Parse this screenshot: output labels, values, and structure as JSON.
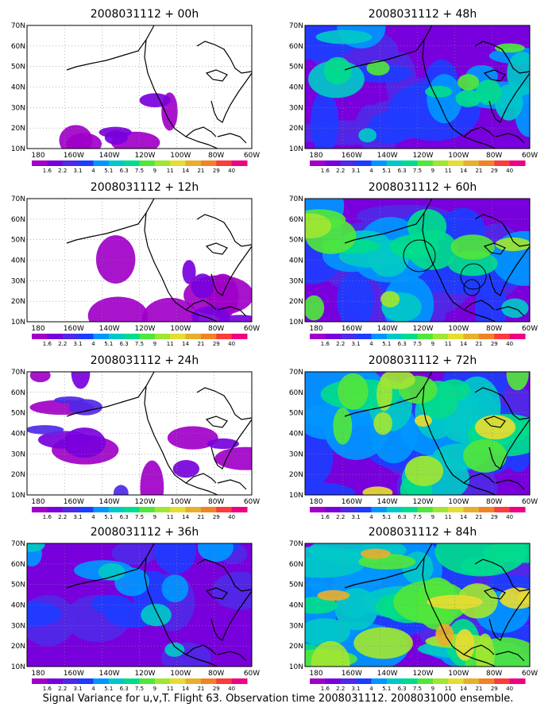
{
  "panels": [
    {
      "title": "2008031112 + 00h",
      "intensity": 0.05
    },
    {
      "title": "2008031112 + 48h",
      "intensity": 0.55
    },
    {
      "title": "2008031112 + 12h",
      "intensity": 0.18
    },
    {
      "title": "2008031112 + 60h",
      "intensity": 0.65,
      "circles": true
    },
    {
      "title": "2008031112 + 24h",
      "intensity": 0.25
    },
    {
      "title": "2008031112 + 72h",
      "intensity": 0.75
    },
    {
      "title": "2008031112 + 36h",
      "intensity": 0.4
    },
    {
      "title": "2008031112 + 84h",
      "intensity": 0.9
    }
  ],
  "lat_labels": [
    "70N",
    "60N",
    "50N",
    "40N",
    "30N",
    "20N",
    "10N"
  ],
  "lon_labels": [
    "180",
    "160W",
    "140W",
    "120W",
    "100W",
    "80W",
    "60W"
  ],
  "colorbar": {
    "labels": [
      "1.6",
      "2.2",
      "3.1",
      "4",
      "5.1",
      "6.3",
      "7.5",
      "9",
      "11",
      "14",
      "21",
      "29",
      "40"
    ],
    "colors": [
      "#a000c8",
      "#7800dc",
      "#5028e6",
      "#1e3cff",
      "#0096ff",
      "#00c8c8",
      "#00dc8c",
      "#50e63c",
      "#a0e632",
      "#e6dc32",
      "#e6af2d",
      "#f08228",
      "#fa3c3c",
      "#f00082"
    ]
  },
  "footer": "Signal Variance for u,v,T. Flight 63. Observation time 2008031112. 2008031000 ensemble."
}
